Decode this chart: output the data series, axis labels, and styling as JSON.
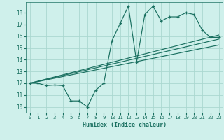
{
  "xlabel": "Humidex (Indice chaleur)",
  "background_color": "#cff0eb",
  "grid_color": "#aad8d0",
  "line_color": "#1a7060",
  "xlim": [
    -0.5,
    23.5
  ],
  "ylim": [
    9.5,
    18.9
  ],
  "xticks": [
    0,
    1,
    2,
    3,
    4,
    5,
    6,
    7,
    8,
    9,
    10,
    11,
    12,
    13,
    14,
    15,
    16,
    17,
    18,
    19,
    20,
    21,
    22,
    23
  ],
  "yticks": [
    10,
    11,
    12,
    13,
    14,
    15,
    16,
    17,
    18
  ],
  "main_line_x": [
    0,
    1,
    2,
    3,
    4,
    5,
    6,
    7,
    8,
    9,
    10,
    11,
    12,
    13,
    14,
    15,
    16,
    17,
    18,
    19,
    20,
    21,
    22,
    23
  ],
  "main_line_y": [
    12.0,
    12.0,
    11.8,
    11.85,
    11.8,
    10.5,
    10.5,
    10.0,
    11.4,
    12.0,
    15.6,
    17.1,
    18.55,
    13.8,
    17.85,
    18.55,
    17.3,
    17.65,
    17.65,
    18.0,
    17.85,
    16.5,
    15.9,
    15.9
  ],
  "trend1_x": [
    0,
    23
  ],
  "trend1_y": [
    12.0,
    16.1
  ],
  "trend2_x": [
    0,
    23
  ],
  "trend2_y": [
    12.0,
    15.25
  ],
  "trend3_x": [
    0,
    23
  ],
  "trend3_y": [
    12.0,
    15.75
  ]
}
